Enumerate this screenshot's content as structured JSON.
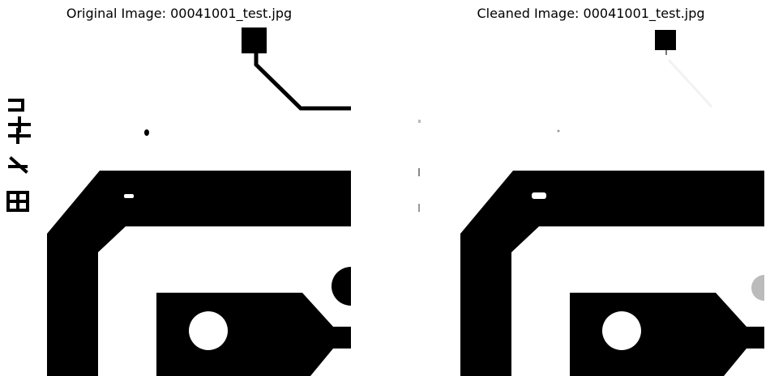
{
  "panels": [
    {
      "title": "Original Image: 00041001_test.jpg"
    },
    {
      "title": "Cleaned Image: 00041001_test.jpg"
    }
  ]
}
